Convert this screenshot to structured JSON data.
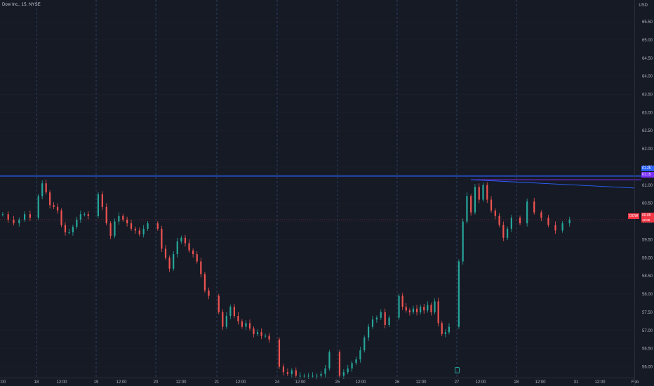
{
  "header": {
    "symbol_title": "Dow Inc., 15, NYSE",
    "currency": "USD"
  },
  "badges": {
    "ticker": "DOW",
    "last_price": "60.05",
    "countdown": "12:06",
    "line_blue": "61.25",
    "line_purple": "61.15"
  },
  "colors": {
    "background": "#161a25",
    "up": "#26a69a",
    "down": "#ef5350",
    "hline": "#2962ff",
    "trendline": "#7b2ff7",
    "last_price": "#f23645"
  },
  "chart_data": {
    "type": "candlestick",
    "interval": "15 minutes",
    "y_axis": {
      "ylim": [
        55.7,
        66.1
      ],
      "ticks": [
        "56.00",
        "56.50",
        "57.00",
        "57.50",
        "58.00",
        "58.50",
        "59.00",
        "59.50",
        "60.00",
        "60.50",
        "61.00",
        "61.50",
        "62.00",
        "62.50",
        "63.00",
        "63.50",
        "64.00",
        "64.50",
        "65.00",
        "65.50"
      ]
    },
    "x_axis": {
      "tick_labels": [
        ":00",
        "18",
        "12:00",
        "19",
        "12:00",
        "20",
        "12:00",
        "21",
        "12:00",
        "24",
        "12:00",
        "25",
        "12:00",
        "26",
        "12:00",
        "27",
        "12:00",
        "28",
        "12:00",
        "31",
        "12:00",
        "Feb"
      ]
    },
    "session_dividers": [
      "18",
      "19",
      "20",
      "21",
      "24",
      "25",
      "26",
      "27",
      "28"
    ],
    "horizontal_lines": [
      61.25,
      61.15
    ],
    "trend_line": {
      "start": [
        "27",
        61.15
      ],
      "end": [
        "Feb",
        60.92
      ]
    },
    "last_price_line": 60.05,
    "price_path": [
      [
        "17",
        60.2
      ],
      [
        "17",
        60.05
      ],
      [
        "17",
        59.95
      ],
      [
        "17",
        60.05
      ],
      [
        "17",
        60.2
      ],
      [
        "17",
        60.1
      ],
      [
        "18",
        60.7
      ],
      [
        "18",
        61.05
      ],
      [
        "18",
        60.8
      ],
      [
        "18",
        60.45
      ],
      [
        "18",
        60.4
      ],
      [
        "18",
        60.3
      ],
      [
        "18",
        59.9
      ],
      [
        "18",
        59.7
      ],
      [
        "18",
        59.7
      ],
      [
        "18",
        59.85
      ],
      [
        "18",
        60.05
      ],
      [
        "18",
        60.2
      ],
      [
        "18",
        60.2
      ],
      [
        "18",
        60.15
      ],
      [
        "19",
        60.75
      ],
      [
        "19",
        60.4
      ],
      [
        "19",
        59.95
      ],
      [
        "19",
        59.6
      ],
      [
        "19",
        60.0
      ],
      [
        "19",
        60.15
      ],
      [
        "19",
        60.05
      ],
      [
        "19",
        59.95
      ],
      [
        "19",
        59.8
      ],
      [
        "19",
        59.75
      ],
      [
        "19",
        59.65
      ],
      [
        "19",
        59.8
      ],
      [
        "19",
        59.95
      ],
      [
        "20",
        59.8
      ],
      [
        "20",
        59.25
      ],
      [
        "20",
        59.0
      ],
      [
        "20",
        58.7
      ],
      [
        "20",
        59.1
      ],
      [
        "20",
        59.45
      ],
      [
        "20",
        59.55
      ],
      [
        "20",
        59.4
      ],
      [
        "20",
        59.2
      ],
      [
        "20",
        59.1
      ],
      [
        "20",
        58.9
      ],
      [
        "20",
        58.55
      ],
      [
        "20",
        58.1
      ],
      [
        "20",
        57.95
      ],
      [
        "21",
        57.5
      ],
      [
        "21",
        57.1
      ],
      [
        "21",
        57.4
      ],
      [
        "21",
        57.65
      ],
      [
        "21",
        57.4
      ],
      [
        "21",
        57.25
      ],
      [
        "21",
        57.1
      ],
      [
        "21",
        57.2
      ],
      [
        "21",
        57.05
      ],
      [
        "21",
        56.9
      ],
      [
        "21",
        56.95
      ],
      [
        "21",
        56.85
      ],
      [
        "21",
        56.85
      ],
      [
        "21",
        56.75
      ],
      [
        "24",
        56.0
      ],
      [
        "24",
        55.85
      ],
      [
        "24",
        55.8
      ],
      [
        "24",
        55.9
      ],
      [
        "24",
        55.75
      ],
      [
        "24",
        55.75
      ],
      [
        "24",
        55.75
      ],
      [
        "24",
        55.75
      ],
      [
        "24",
        55.75
      ],
      [
        "24",
        55.75
      ],
      [
        "24",
        55.8
      ],
      [
        "24",
        55.95
      ],
      [
        "24",
        56.4
      ],
      [
        "25",
        55.75
      ],
      [
        "25",
        55.85
      ],
      [
        "25",
        55.95
      ],
      [
        "25",
        56.1
      ],
      [
        "25",
        56.2
      ],
      [
        "25",
        56.45
      ],
      [
        "25",
        56.8
      ],
      [
        "25",
        57.1
      ],
      [
        "25",
        57.3
      ],
      [
        "25",
        57.35
      ],
      [
        "25",
        57.5
      ],
      [
        "25",
        57.15
      ],
      [
        "25",
        57.35
      ],
      [
        "26",
        57.95
      ],
      [
        "26",
        57.65
      ],
      [
        "26",
        57.55
      ],
      [
        "26",
        57.5
      ],
      [
        "26",
        57.6
      ],
      [
        "26",
        57.5
      ],
      [
        "26",
        57.65
      ],
      [
        "26",
        57.55
      ],
      [
        "26",
        57.7
      ],
      [
        "26",
        57.5
      ],
      [
        "26",
        57.8
      ],
      [
        "26",
        57.2
      ],
      [
        "26",
        56.9
      ],
      [
        "26",
        56.95
      ],
      [
        "26",
        57.1
      ],
      [
        "27",
        58.9
      ],
      [
        "27",
        60.0
      ],
      [
        "27",
        60.7
      ],
      [
        "27",
        60.25
      ],
      [
        "27",
        60.95
      ],
      [
        "27",
        60.6
      ],
      [
        "27",
        61.0
      ],
      [
        "27",
        60.6
      ],
      [
        "27",
        60.3
      ],
      [
        "27",
        60.15
      ],
      [
        "27",
        59.9
      ],
      [
        "27",
        59.55
      ],
      [
        "27",
        59.8
      ],
      [
        "27",
        60.1
      ],
      [
        "28",
        59.95
      ],
      [
        "28",
        60.55
      ],
      [
        "28",
        60.25
      ],
      [
        "28",
        60.1
      ],
      [
        "28",
        59.9
      ],
      [
        "28",
        59.75
      ],
      [
        "28",
        59.95
      ],
      [
        "28",
        60.05
      ]
    ]
  }
}
